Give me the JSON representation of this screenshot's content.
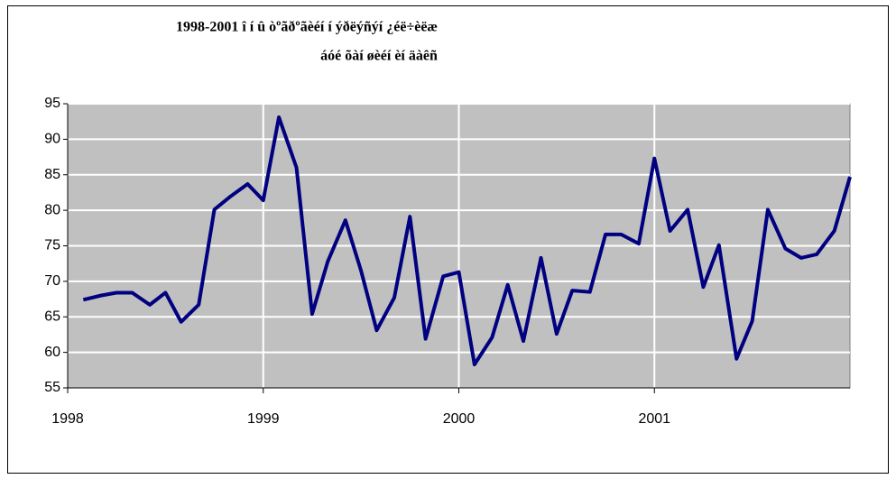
{
  "chart_data": {
    "type": "line",
    "title": "1998-2001 î í û òºãðºãèéí í ýðëýñýí ¿éë÷èëæ",
    "subtitle": "áóé õàí øèéí èí äàêñ",
    "x": [
      1998.08,
      1998.17,
      1998.25,
      1998.33,
      1998.42,
      1998.5,
      1998.58,
      1998.67,
      1998.75,
      1998.83,
      1998.92,
      1999,
      1999.08,
      1999.17,
      1999.25,
      1999.33,
      1999.42,
      1999.5,
      1999.58,
      1999.67,
      1999.75,
      1999.83,
      1999.92,
      2000,
      2000.08,
      2000.17,
      2000.25,
      2000.33,
      2000.42,
      2000.5,
      2000.58,
      2000.67,
      2000.75,
      2000.83,
      2000.92,
      2001,
      2001.08,
      2001.17,
      2001.25,
      2001.33,
      2001.42,
      2001.5,
      2001.58,
      2001.67,
      2001.75,
      2001.83,
      2001.92,
      2002
    ],
    "series": [
      {
        "color": "#000080",
        "values": [
          67.4,
          68,
          68.4,
          68.4,
          66.7,
          68.4,
          64.3,
          66.7,
          80.1,
          81.9,
          83.7,
          81.4,
          93.1,
          86,
          65.4,
          72.8,
          78.6,
          71.5,
          63.1,
          67.7,
          79.1,
          61.9,
          70.7,
          71.3,
          58.3,
          62.1,
          69.5,
          61.6,
          73.3,
          62.6,
          68.7,
          68.5,
          76.6,
          76.6,
          75.3,
          87.3,
          77.1,
          80.1,
          69.2,
          75.1,
          59.1,
          64.4,
          80.1,
          74.6,
          73.3,
          73.8,
          77.1,
          84.7
        ]
      }
    ],
    "xlim": [
      1998,
      2002
    ],
    "xticks": [
      1998,
      1999,
      2000,
      2001
    ],
    "ylim": [
      55,
      95
    ],
    "yticks": [
      55,
      60,
      65,
      70,
      75,
      80,
      85,
      90,
      95
    ],
    "grid": true,
    "plot_color": "#c0c0c0"
  }
}
